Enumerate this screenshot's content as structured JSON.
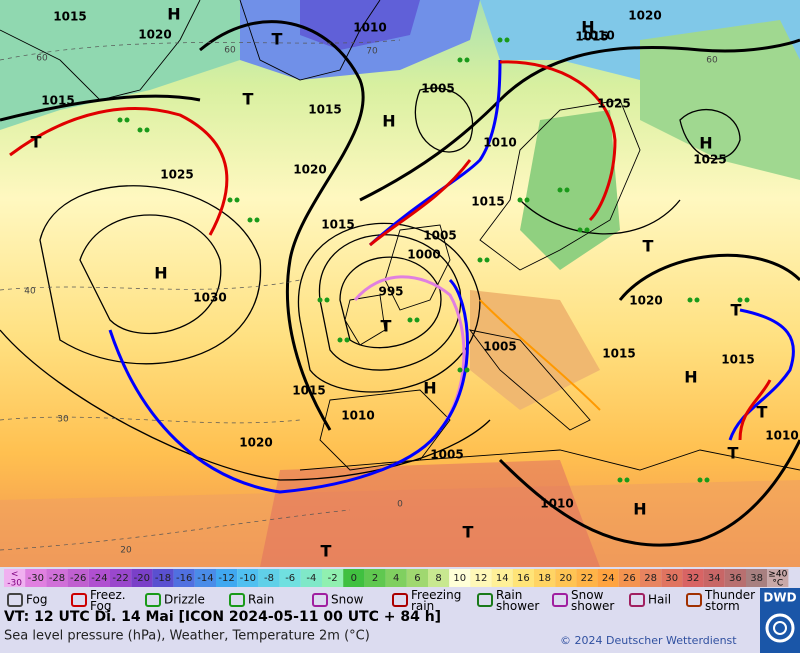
{
  "map": {
    "isobar_labels": [
      "1015",
      "1020",
      "1010",
      "1015",
      "1005",
      "1015",
      "1010",
      "1020",
      "1025",
      "1015",
      "1015",
      "1010",
      "1020",
      "1025",
      "1030",
      "1015",
      "1005",
      "1000",
      "995",
      "1005",
      "1015",
      "1025",
      "1015",
      "1010",
      "1005",
      "1020",
      "1010",
      "1015",
      "1010",
      "1020"
    ],
    "pressure_centers": [
      "H",
      "H",
      "T",
      "T",
      "H",
      "T",
      "H",
      "H",
      "T",
      "H",
      "H",
      "H",
      "T",
      "T",
      "T",
      "T",
      "T",
      "T"
    ],
    "temperature_contour_labels": [
      "60",
      "60",
      "70",
      "60",
      "40",
      "30",
      "20",
      "0"
    ]
  },
  "temperature_scale": {
    "below_label": [
      "<",
      "-30"
    ],
    "values": [
      -30,
      -28,
      -26,
      -24,
      -22,
      -20,
      -18,
      -16,
      -14,
      -12,
      -10,
      -8,
      -6,
      -4,
      -2,
      0,
      2,
      4,
      6,
      8,
      10,
      12,
      14,
      16,
      18,
      20,
      22,
      24,
      26,
      28,
      30,
      32,
      34,
      36,
      38
    ],
    "colors": [
      "#e080e0",
      "#d070d8",
      "#c060d0",
      "#b050d0",
      "#9a48cc",
      "#7a40c8",
      "#5a50d0",
      "#5070e0",
      "#4a8ce8",
      "#40a8f0",
      "#50c0f0",
      "#60d0e8",
      "#70e0e0",
      "#80e8c8",
      "#90f0b0",
      "#40c040",
      "#60c850",
      "#80d060",
      "#a0d870",
      "#c8e890",
      "#ffffd8",
      "#fff8b8",
      "#fff098",
      "#ffe478",
      "#ffd464",
      "#ffc454",
      "#ffb448",
      "#ffa440",
      "#f49450",
      "#e88460",
      "#e07460",
      "#d86464",
      "#c86666",
      "#b87070",
      "#a88080"
    ],
    "below_color": "#f0b0f0",
    "above_label": [
      "≥40",
      "°C"
    ],
    "above_color": "#c8a8a8"
  },
  "legend": [
    "Fog",
    "Freez.\nFog",
    "Drizzle",
    "Rain",
    "Snow",
    "Freezing\nrain",
    "Rain\nshower",
    "Snow\nshower",
    "Hail",
    "Thunder\nstorm"
  ],
  "footer": {
    "valid_time": "VT: 12 UTC Di.  14 Mai [ICON 2024-05-11  00 UTC + 84 h]",
    "description": "Sea level pressure (hPa), Weather, Temperature 2m (°C)",
    "copyright": "© 2024 Deutscher Wetterdienst",
    "logo": "DWD"
  }
}
